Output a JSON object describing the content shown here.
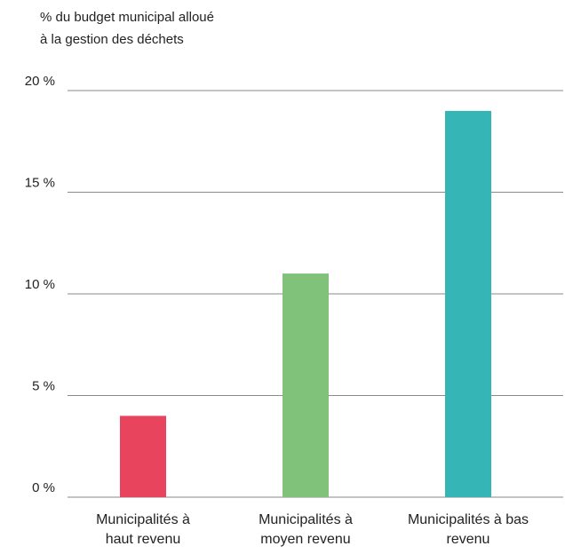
{
  "chart_data": {
    "type": "bar",
    "ylabel_lines": [
      "% du budget municipal alloué",
      "à la gestion des déchets"
    ],
    "xlabel": "",
    "categories": [
      [
        "Municipalités à",
        "haut revenu"
      ],
      [
        "Municipalités à",
        "moyen revenu"
      ],
      [
        "Municipalités à bas",
        "revenu"
      ]
    ],
    "values": [
      4,
      11,
      19
    ],
    "colors": [
      "#e8445e",
      "#80c27a",
      "#35b5b5"
    ],
    "ylim": [
      0,
      20
    ],
    "yticks": [
      {
        "value": 0,
        "label": "0 %"
      },
      {
        "value": 5,
        "label": "5 %"
      },
      {
        "value": 10,
        "label": "10 %"
      },
      {
        "value": 15,
        "label": "15 %"
      },
      {
        "value": 20,
        "label": "20 %"
      }
    ],
    "grid": true,
    "legend": false
  }
}
